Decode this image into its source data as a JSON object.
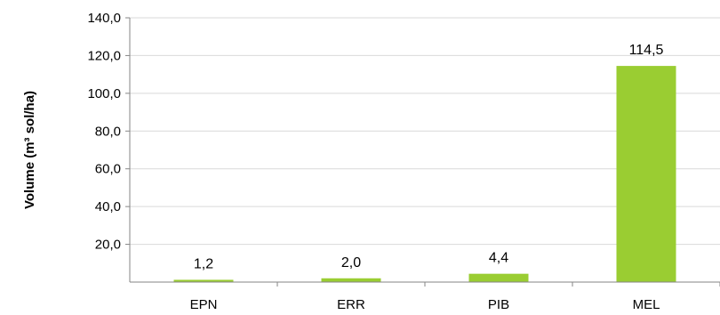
{
  "chart_data": {
    "type": "bar",
    "categories": [
      "EPN",
      "ERR",
      "PIB",
      "MEL"
    ],
    "values": [
      1.2,
      2.0,
      4.4,
      114.5
    ],
    "value_labels": [
      "1,2",
      "2,0",
      "4,4",
      "114,5"
    ],
    "title": "",
    "xlabel": "",
    "ylabel": "Volume (m³ sol/ha)",
    "ylim": [
      0,
      140
    ],
    "yticks": [
      20,
      40,
      60,
      80,
      100,
      120,
      140
    ],
    "ytick_labels": [
      "20,0",
      "40,0",
      "60,0",
      "80,0",
      "100,0",
      "120,0",
      "140,0"
    ],
    "grid": true,
    "legend": "none",
    "bar_color": "#9acd32",
    "grid_color": "#d9d9d9",
    "axis_color": "#868686"
  }
}
